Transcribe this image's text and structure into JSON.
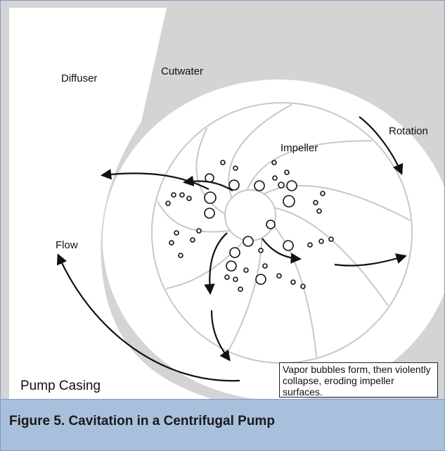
{
  "labels": {
    "diffuser": "Diffuser",
    "cutwater": "Cutwater",
    "rotation": "Rotation",
    "impeller": "Impeller",
    "flow": "Flow",
    "casing": "Pump Casing"
  },
  "note": "Vapor bubbles form, then violently collapse, eroding impeller surfaces.",
  "caption": "Figure 5. Cavitation in a Centrifugal Pump"
}
